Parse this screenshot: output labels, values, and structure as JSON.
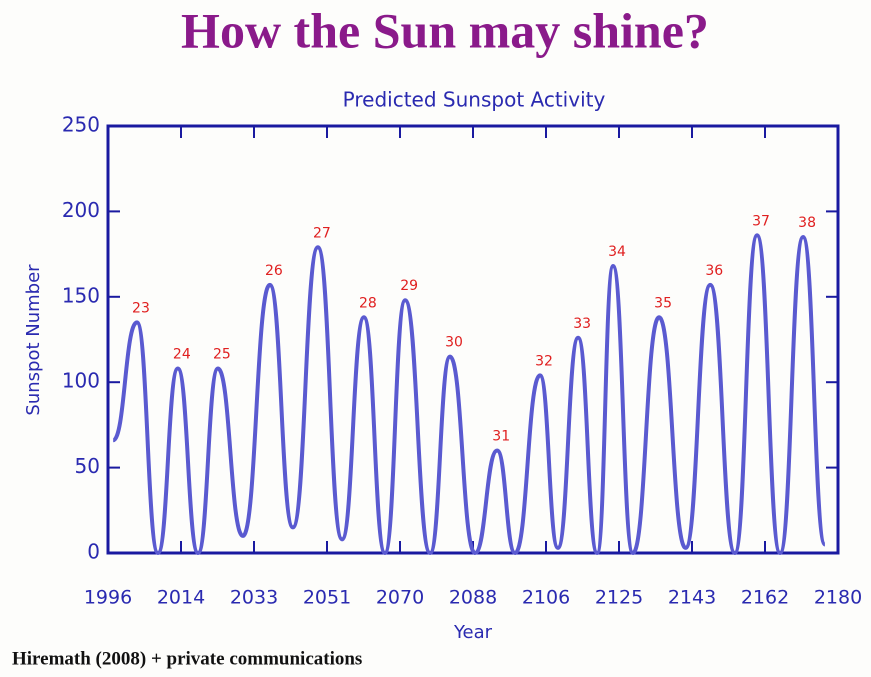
{
  "header": {
    "title": "How the Sun may shine?"
  },
  "chart_data": {
    "type": "line",
    "title": "Predicted Sunspot Activity",
    "x_label": "Year",
    "y_label": "Sunspot Number",
    "x": [
      1997.3,
      2003.3,
      2008.6,
      2013.6,
      2018.7,
      2023.7,
      2030.0,
      2036.8,
      2042.6,
      2048.9,
      2055.0,
      2060.5,
      2065.8,
      2070.9,
      2077.2,
      2082.2,
      2088.5,
      2094.1,
      2098.6,
      2104.9,
      2109.4,
      2114.5,
      2119.3,
      2123.3,
      2128.3,
      2134.9,
      2141.6,
      2147.8,
      2154.0,
      2159.6,
      2165.4,
      2171.2,
      2176.7
    ],
    "series": [
      {
        "name": "Sunspot Number",
        "color": "#5a5ad0",
        "values": [
          66,
          135,
          0,
          108,
          0,
          108,
          10,
          157,
          15,
          179,
          8,
          138,
          0,
          148,
          0,
          115,
          0,
          60,
          0,
          104,
          3,
          126,
          0,
          168,
          0,
          138,
          3,
          157,
          0,
          186,
          0,
          185,
          5
        ]
      }
    ],
    "cycle_labels": [
      null,
      "23",
      null,
      "24",
      null,
      "25",
      null,
      "26",
      null,
      "27",
      null,
      "28",
      null,
      "29",
      null,
      "30",
      null,
      "31",
      null,
      "32",
      null,
      "33",
      null,
      "34",
      null,
      "35",
      null,
      "36",
      null,
      "37",
      null,
      "38",
      null
    ],
    "label_color": "#e02020",
    "xlim": [
      1996,
      2180
    ],
    "xticks": [
      1996,
      {
        "value": 2014.4,
        "label": "2014"
      },
      {
        "value": 2032.8,
        "label": "2033"
      },
      {
        "value": 2051.2,
        "label": "2051"
      },
      {
        "value": 2069.6,
        "label": "2070"
      },
      2088,
      {
        "value": 2106.4,
        "label": "2106"
      },
      {
        "value": 2124.8,
        "label": "2125"
      },
      {
        "value": 2143.2,
        "label": "2143"
      },
      {
        "value": 2161.6,
        "label": "2162"
      },
      2180
    ],
    "ylim": [
      0,
      250
    ],
    "yticks": [
      0,
      50,
      100,
      150,
      200,
      250
    ],
    "grid": false
  },
  "footer": {
    "text": "Hiremath (2008) + private communications"
  }
}
